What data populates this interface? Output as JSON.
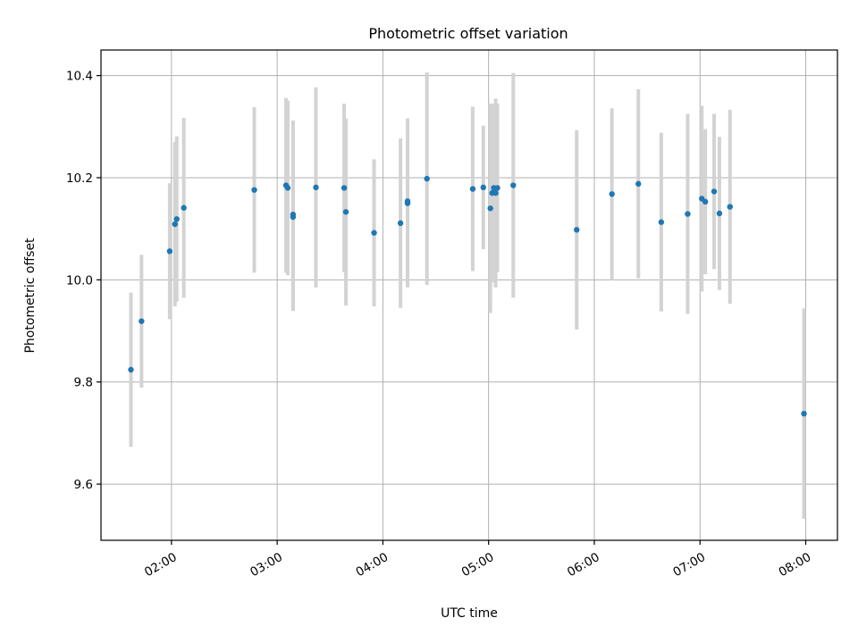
{
  "chart_data": {
    "type": "scatter",
    "title": "Photometric offset variation",
    "xlabel": "UTC time",
    "ylabel": "Photometric offset",
    "x_ticks": [
      "02:00",
      "03:00",
      "04:00",
      "05:00",
      "06:00",
      "07:00",
      "08:00"
    ],
    "x_tick_values": [
      "02:00",
      "03:00",
      "04:00",
      "05:00",
      "06:00",
      "07:00",
      "08:00"
    ],
    "y_ticks": [
      "9.6",
      "9.8",
      "10.0",
      "10.2",
      "10.4"
    ],
    "y_tick_values": [
      9.6,
      9.8,
      10.0,
      10.2,
      10.4
    ],
    "xlim": [
      "01:20",
      "08:18"
    ],
    "ylim": [
      9.49,
      10.45
    ],
    "grid": true,
    "colors": {
      "points": "#1f77b4",
      "errorbars": "#d3d3d3"
    },
    "series": [
      {
        "points": [
          {
            "x": "01:37",
            "y": 9.824,
            "err": 0.151
          },
          {
            "x": "01:43",
            "y": 9.919,
            "err": 0.13
          },
          {
            "x": "01:59",
            "y": 10.056,
            "err": 0.133
          },
          {
            "x": "02:02",
            "y": 10.109,
            "err": 0.161
          },
          {
            "x": "02:03",
            "y": 10.119,
            "err": 0.162
          },
          {
            "x": "02:07",
            "y": 10.141,
            "err": 0.176
          },
          {
            "x": "02:47",
            "y": 10.176,
            "err": 0.162
          },
          {
            "x": "03:05",
            "y": 10.185,
            "err": 0.171
          },
          {
            "x": "03:06",
            "y": 10.18,
            "err": 0.171
          },
          {
            "x": "03:09",
            "y": 10.128,
            "err": 0.184
          },
          {
            "x": "03:09",
            "y": 10.123,
            "err": 0.184
          },
          {
            "x": "03:22",
            "y": 10.181,
            "err": 0.196
          },
          {
            "x": "03:38",
            "y": 10.18,
            "err": 0.165
          },
          {
            "x": "03:39",
            "y": 10.133,
            "err": 0.183
          },
          {
            "x": "03:55",
            "y": 10.092,
            "err": 0.144
          },
          {
            "x": "04:10",
            "y": 10.111,
            "err": 0.166
          },
          {
            "x": "04:14",
            "y": 10.15,
            "err": 0.165
          },
          {
            "x": "04:14",
            "y": 10.154,
            "err": 0.162
          },
          {
            "x": "04:25",
            "y": 10.198,
            "err": 0.208
          },
          {
            "x": "04:51",
            "y": 10.178,
            "err": 0.161
          },
          {
            "x": "04:57",
            "y": 10.181,
            "err": 0.121
          },
          {
            "x": "05:01",
            "y": 10.14,
            "err": 0.205
          },
          {
            "x": "05:02",
            "y": 10.17,
            "err": 0.175
          },
          {
            "x": "05:03",
            "y": 10.18,
            "err": 0.165
          },
          {
            "x": "05:04",
            "y": 10.17,
            "err": 0.185
          },
          {
            "x": "05:05",
            "y": 10.18,
            "err": 0.165
          },
          {
            "x": "05:14",
            "y": 10.185,
            "err": 0.22
          },
          {
            "x": "05:50",
            "y": 10.098,
            "err": 0.195
          },
          {
            "x": "06:10",
            "y": 10.168,
            "err": 0.168
          },
          {
            "x": "06:25",
            "y": 10.188,
            "err": 0.185
          },
          {
            "x": "06:38",
            "y": 10.113,
            "err": 0.175
          },
          {
            "x": "06:53",
            "y": 10.129,
            "err": 0.196
          },
          {
            "x": "07:01",
            "y": 10.159,
            "err": 0.182
          },
          {
            "x": "07:03",
            "y": 10.153,
            "err": 0.142
          },
          {
            "x": "07:08",
            "y": 10.173,
            "err": 0.152
          },
          {
            "x": "07:11",
            "y": 10.13,
            "err": 0.15
          },
          {
            "x": "07:17",
            "y": 10.143,
            "err": 0.19
          },
          {
            "x": "07:59",
            "y": 9.738,
            "err": 0.206
          }
        ]
      }
    ]
  }
}
